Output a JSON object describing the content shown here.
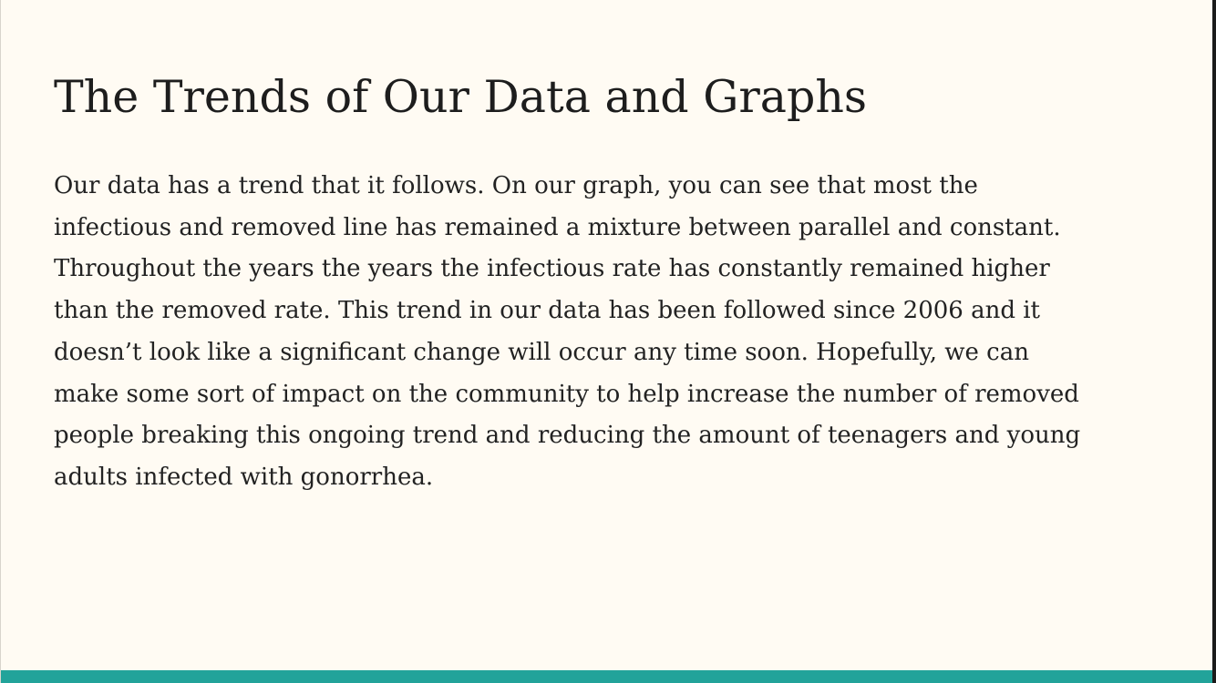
{
  "slide": {
    "title": "The Trends of Our Data and Graphs",
    "body_lines": [
      "Our data has a trend that it follows. On our graph, you can see that most the",
      "infectious and removed line has remained a mixture between parallel and constant.",
      "Throughout the years the years the infectious rate has constantly remained higher",
      "than the removed rate. This trend in our data has been followed since 2006 and it",
      "doesn’t look like a significant change will occur any time soon. Hopefully, we can",
      "make some sort of impact on the community to help increase the number of removed",
      "people breaking this ongoing trend and reducing the amount of teenagers and young",
      "adults infected with gonorrhea."
    ]
  },
  "colors": {
    "background": "#fffbf3",
    "text": "#1d1d1d",
    "accent_bar": "#22a39a"
  }
}
